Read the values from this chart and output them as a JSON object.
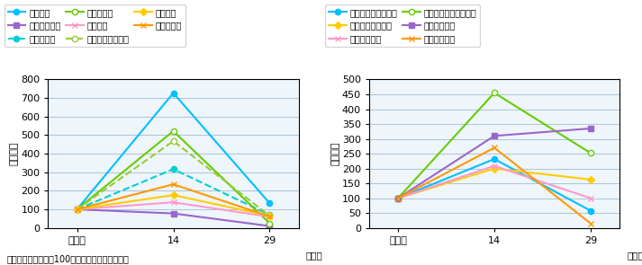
{
  "note": "注：指数は、元年を100とした場合の値である。",
  "x_labels": [
    "平成元",
    "14",
    "29"
  ],
  "x_ticks": [
    0,
    1,
    2
  ],
  "chart1": {
    "ylabel": "（指数）",
    "ylim": [
      0,
      800
    ],
    "yticks": [
      0,
      100,
      200,
      300,
      400,
      500,
      600,
      700,
      800
    ],
    "series": [
      {
        "label": "路上強盗",
        "values": [
          100,
          727,
          133
        ],
        "color": "#00bfff",
        "linestyle": "-",
        "marker": "o",
        "markerfacecolor": "#00bfff",
        "linewidth": 1.5
      },
      {
        "label": "オートバイ盗",
        "values": [
          100,
          78,
          10
        ],
        "color": "#9966cc",
        "linestyle": "-",
        "marker": "s",
        "markerfacecolor": "#9966cc",
        "linewidth": 1.5
      },
      {
        "label": "部品ねらい",
        "values": [
          100,
          317,
          70
        ],
        "color": "#00ced1",
        "linestyle": "--",
        "marker": "o",
        "markerfacecolor": "#00ced1",
        "linewidth": 1.5
      },
      {
        "label": "ひったくり",
        "values": [
          100,
          522,
          25
        ],
        "color": "#66cc00",
        "linestyle": "-",
        "marker": "o",
        "markerfacecolor": "white",
        "linewidth": 1.5
      },
      {
        "label": "自転車盗",
        "values": [
          100,
          138,
          60
        ],
        "color": "#ff99cc",
        "linestyle": "-",
        "marker": "x",
        "markerfacecolor": "#ff99cc",
        "linewidth": 1.5
      },
      {
        "label": "自動販売機ねらい",
        "values": [
          100,
          468,
          65
        ],
        "color": "#99cc33",
        "linestyle": "--",
        "marker": "o",
        "markerfacecolor": "white",
        "linewidth": 1.5
      },
      {
        "label": "自動車盗",
        "values": [
          100,
          177,
          65
        ],
        "color": "#ffcc00",
        "linestyle": "-",
        "marker": "D",
        "markerfacecolor": "#ffcc00",
        "linewidth": 1.5
      },
      {
        "label": "車上ねらい",
        "values": [
          100,
          235,
          62
        ],
        "color": "#ff9900",
        "linestyle": "-",
        "marker": "x",
        "markerfacecolor": "#ff9900",
        "linewidth": 1.5
      }
    ]
  },
  "chart2": {
    "ylabel": "（指数）",
    "ylim": [
      0,
      500
    ],
    "yticks": [
      0,
      50,
      100,
      150,
      200,
      250,
      300,
      350,
      400,
      450,
      500
    ],
    "series": [
      {
        "label": "強制性交等（街頭）",
        "values": [
          100,
          232,
          58
        ],
        "color": "#00bfff",
        "linestyle": "-",
        "marker": "o",
        "markerfacecolor": "#00bfff",
        "linewidth": 1.5
      },
      {
        "label": "路取誘拐（街頭）",
        "values": [
          100,
          200,
          163
        ],
        "color": "#ffcc00",
        "linestyle": "-",
        "marker": "D",
        "markerfacecolor": "#ffcc00",
        "linewidth": 1.5
      },
      {
        "label": "傷害（街頭）",
        "values": [
          100,
          209,
          100
        ],
        "color": "#ff99cc",
        "linestyle": "-",
        "marker": "x",
        "markerfacecolor": "#ff99cc",
        "linewidth": 1.5
      },
      {
        "label": "強制わいせつ（街頭）",
        "values": [
          100,
          455,
          252
        ],
        "color": "#66cc00",
        "linestyle": "-",
        "marker": "o",
        "markerfacecolor": "white",
        "linewidth": 1.5
      },
      {
        "label": "暴行（街頭）",
        "values": [
          100,
          310,
          335
        ],
        "color": "#9966cc",
        "linestyle": "-",
        "marker": "s",
        "markerfacecolor": "#9966cc",
        "linewidth": 1.5
      },
      {
        "label": "恐喝（街頭）",
        "values": [
          100,
          270,
          15
        ],
        "color": "#ff9900",
        "linestyle": "-",
        "marker": "x",
        "markerfacecolor": "#ff9900",
        "linewidth": 1.5
      }
    ]
  },
  "background_color": "#eef5fb",
  "grid_color": "#aac4d8",
  "fig_bg": "#ffffff"
}
